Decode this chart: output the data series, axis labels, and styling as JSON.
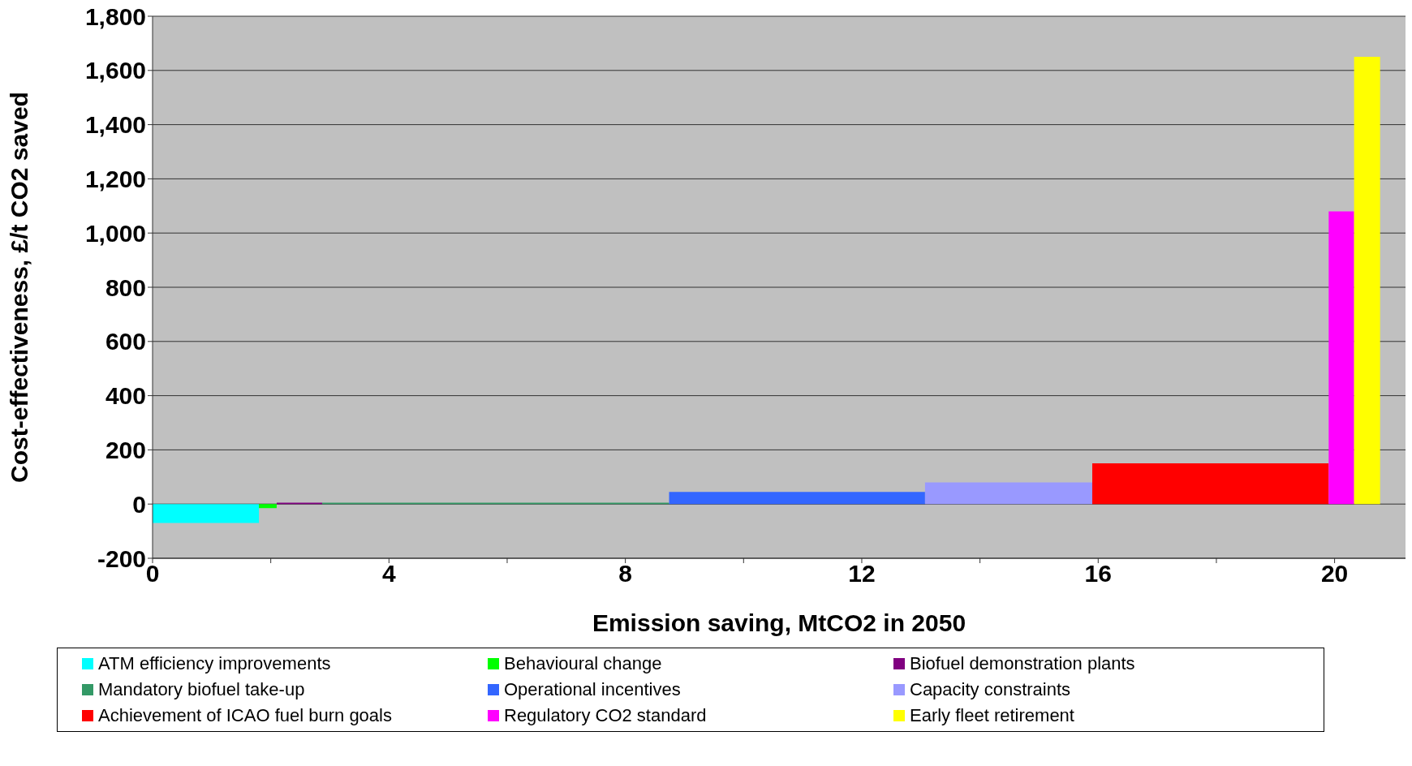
{
  "chart_data": {
    "type": "area",
    "xlabel": "Emission saving, MtCO2 in 2050",
    "ylabel": "Cost-effectiveness, £/t CO2 saved",
    "xlim": [
      0,
      21.2
    ],
    "xticks": [
      0,
      {
        "value": 2,
        "label": null
      },
      4,
      {
        "value": 6,
        "label": null
      },
      8,
      {
        "value": 10,
        "label": null
      },
      12,
      {
        "value": 14,
        "label": null
      },
      16,
      {
        "value": 18,
        "label": null
      },
      20
    ],
    "ylim": [
      -200,
      1800
    ],
    "yticks": [
      {
        "value": -200,
        "label": "-200"
      },
      0,
      200,
      400,
      600,
      800,
      {
        "value": 1000,
        "label": "1,000"
      },
      {
        "value": 1200,
        "label": "1,200"
      },
      {
        "value": 1400,
        "label": "1,400"
      },
      {
        "value": 1600,
        "label": "1,600"
      },
      {
        "value": 1800,
        "label": "1,800"
      }
    ],
    "grid": "y",
    "legend": "bottom",
    "series": [
      {
        "name": "ATM efficiency improvements",
        "color": "#00ffff",
        "x": [
          0,
          1.8
        ],
        "values": [
          -70,
          -70
        ]
      },
      {
        "name": "Behavioural change",
        "color": "#00ff00",
        "x": [
          1.8,
          2.1
        ],
        "values": [
          -15,
          -15
        ]
      },
      {
        "name": "Biofuel demonstration plants",
        "color": "#800080",
        "x": [
          2.1,
          2.87
        ],
        "values": [
          5,
          5
        ]
      },
      {
        "name": "Mandatory biofuel take-up",
        "color": "#339966",
        "x": [
          2.87,
          8.74
        ],
        "values": [
          5,
          5
        ]
      },
      {
        "name": "Operational incentives",
        "color": "#3366ff",
        "x": [
          8.74,
          13.07
        ],
        "values": [
          45,
          45
        ]
      },
      {
        "name": "Capacity constraints",
        "color": "#9999ff",
        "x": [
          13.07,
          15.9
        ],
        "values": [
          80,
          80
        ]
      },
      {
        "name": "Achievement of ICAO fuel burn goals",
        "color": "#ff0000",
        "x": [
          15.9,
          19.9
        ],
        "values": [
          150,
          150
        ]
      },
      {
        "name": "Regulatory CO2 standard",
        "color": "#ff00ff",
        "x": [
          19.9,
          20.33
        ],
        "values": [
          1080,
          1080
        ]
      },
      {
        "name": "Early fleet retirement",
        "color": "#ffff00",
        "x": [
          20.33,
          20.77
        ],
        "values": [
          1650,
          1650
        ]
      }
    ]
  }
}
